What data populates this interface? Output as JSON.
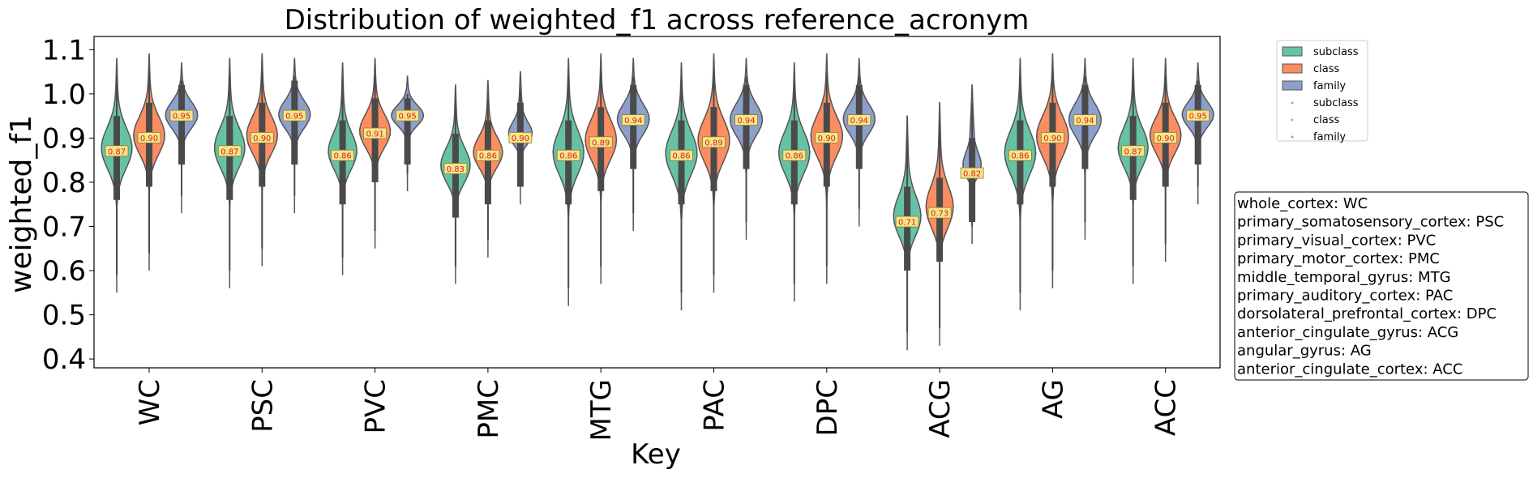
{
  "chart_data": {
    "type": "violin",
    "title": "Distribution of weighted_f1 across reference_acronym",
    "xlabel": "Key",
    "ylabel": "weighted_f1",
    "categories": [
      "WC",
      "PSC",
      "PVC",
      "PMC",
      "MTG",
      "PAC",
      "DPC",
      "ACG",
      "AG",
      "ACC"
    ],
    "ylim": [
      0.38,
      1.13
    ],
    "yticks": [
      0.4,
      0.5,
      0.6,
      0.7,
      0.8,
      0.9,
      1.0,
      1.1
    ],
    "ytick_labels": [
      "0.4",
      "0.5",
      "0.6",
      "0.7",
      "0.8",
      "0.9",
      "1.0",
      "1.1"
    ],
    "grid": false,
    "legend_position": "outside-top-right",
    "legend_entries": [
      {
        "label": "subclass",
        "kind": "patch"
      },
      {
        "label": "class",
        "kind": "patch"
      },
      {
        "label": "family",
        "kind": "patch"
      },
      {
        "label": "subclass",
        "kind": "point"
      },
      {
        "label": "class",
        "kind": "point"
      },
      {
        "label": "family",
        "kind": "point"
      }
    ],
    "series": [
      {
        "name": "subclass",
        "color": "#66c2a5",
        "violin_range": [
          [
            0.55,
            1.08
          ],
          [
            0.56,
            1.08
          ],
          [
            0.59,
            1.07
          ],
          [
            0.57,
            1.02
          ],
          [
            0.52,
            1.08
          ],
          [
            0.51,
            1.07
          ],
          [
            0.53,
            1.07
          ],
          [
            0.42,
            0.95
          ],
          [
            0.51,
            1.08
          ],
          [
            0.57,
            1.08
          ]
        ],
        "medians": [
          0.87,
          0.87,
          0.86,
          0.83,
          0.86,
          0.86,
          0.86,
          0.71,
          0.86,
          0.87
        ],
        "median_labels": [
          "0.87",
          "0.87",
          "0.86",
          "0.83",
          "0.86",
          "0.86",
          "0.86",
          "0.71",
          "0.86",
          "0.87"
        ]
      },
      {
        "name": "class",
        "color": "#fc8d62",
        "violin_range": [
          [
            0.6,
            1.09
          ],
          [
            0.61,
            1.09
          ],
          [
            0.65,
            1.08
          ],
          [
            0.63,
            1.03
          ],
          [
            0.57,
            1.09
          ],
          [
            0.55,
            1.09
          ],
          [
            0.57,
            1.09
          ],
          [
            0.43,
            0.98
          ],
          [
            0.56,
            1.09
          ],
          [
            0.62,
            1.08
          ]
        ],
        "medians": [
          0.9,
          0.9,
          0.91,
          0.86,
          0.89,
          0.89,
          0.9,
          0.73,
          0.9,
          0.9
        ],
        "median_labels": [
          "0.90",
          "0.90",
          "0.91",
          "0.86",
          "0.89",
          "0.89",
          "0.90",
          "0.73",
          "0.90",
          "0.90"
        ]
      },
      {
        "name": "family",
        "color": "#8da0cb",
        "violin_range": [
          [
            0.73,
            1.07
          ],
          [
            0.73,
            1.08
          ],
          [
            0.78,
            1.04
          ],
          [
            0.75,
            1.05
          ],
          [
            0.69,
            1.08
          ],
          [
            0.67,
            1.08
          ],
          [
            0.7,
            1.08
          ],
          [
            0.66,
            1.02
          ],
          [
            0.67,
            1.08
          ],
          [
            0.75,
            1.07
          ]
        ],
        "medians": [
          0.95,
          0.95,
          0.95,
          0.9,
          0.94,
          0.94,
          0.94,
          0.82,
          0.94,
          0.95
        ],
        "median_labels": [
          "0.95",
          "0.95",
          "0.95",
          "0.90",
          "0.94",
          "0.94",
          "0.94",
          "0.82",
          "0.94",
          "0.95"
        ]
      }
    ],
    "key_box": [
      "whole_cortex: WC",
      "primary_somatosensory_cortex: PSC",
      "primary_visual_cortex: PVC",
      "primary_motor_cortex: PMC",
      "middle_temporal_gyrus: MTG",
      "primary_auditory_cortex: PAC",
      "dorsolateral_prefrontal_cortex: DPC",
      "anterior_cingulate_gyrus: ACG",
      "angular_gyrus: AG",
      "anterior_cingulate_cortex: ACC"
    ]
  }
}
